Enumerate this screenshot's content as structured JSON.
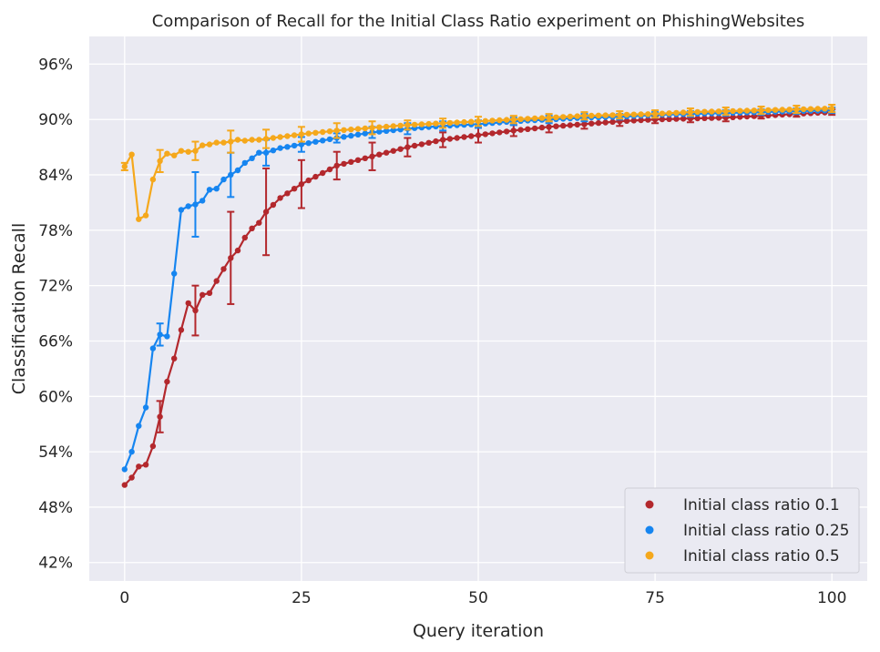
{
  "chart_data": {
    "type": "line",
    "title": "Comparison of Recall for the Initial Class Ratio experiment on PhishingWebsites",
    "xlabel": "Query iteration",
    "ylabel": "Classification Recall",
    "xlim": [
      -5,
      105
    ],
    "ylim": [
      40,
      99
    ],
    "xticks": [
      0,
      25,
      50,
      75,
      100
    ],
    "yticks": [
      42,
      48,
      54,
      60,
      66,
      72,
      78,
      84,
      90,
      96
    ],
    "ytick_format": "percent",
    "grid": true,
    "legend_position": "lower-right",
    "colors": {
      "background": "#eaeaf2",
      "grid": "#ffffff"
    },
    "series": [
      {
        "name": "Initial class ratio 0.1",
        "color": "#b3282d",
        "anchors": [
          [
            0,
            50.4
          ],
          [
            1,
            51.2
          ],
          [
            2,
            52.4
          ],
          [
            3,
            52.6
          ],
          [
            4,
            54.6
          ],
          [
            5,
            57.8
          ],
          [
            6,
            61.6
          ],
          [
            7,
            64.1
          ],
          [
            8,
            67.2
          ],
          [
            9,
            70.1
          ],
          [
            10,
            69.3
          ],
          [
            11,
            71.0
          ],
          [
            12,
            71.2
          ],
          [
            13,
            72.5
          ],
          [
            14,
            73.8
          ],
          [
            15,
            75.0
          ],
          [
            16,
            75.8
          ],
          [
            17,
            77.2
          ],
          [
            18,
            78.2
          ],
          [
            19,
            78.8
          ],
          [
            20,
            80.0
          ],
          [
            22,
            81.5
          ],
          [
            25,
            83.0
          ],
          [
            30,
            85.0
          ],
          [
            35,
            86.0
          ],
          [
            40,
            87.0
          ],
          [
            45,
            87.8
          ],
          [
            50,
            88.3
          ],
          [
            55,
            88.8
          ],
          [
            60,
            89.2
          ],
          [
            65,
            89.5
          ],
          [
            70,
            89.8
          ],
          [
            75,
            90.0
          ],
          [
            80,
            90.1
          ],
          [
            85,
            90.2
          ],
          [
            90,
            90.4
          ],
          [
            95,
            90.6
          ],
          [
            100,
            90.8
          ]
        ],
        "error_bars": [
          [
            5,
            57.8,
            1.7
          ],
          [
            10,
            69.3,
            2.7
          ],
          [
            15,
            75.0,
            5.0
          ],
          [
            20,
            80.0,
            4.7
          ],
          [
            25,
            83.0,
            2.6
          ],
          [
            30,
            85.0,
            1.5
          ],
          [
            35,
            86.0,
            1.5
          ],
          [
            40,
            87.0,
            1.0
          ],
          [
            45,
            87.8,
            0.8
          ],
          [
            50,
            88.3,
            0.8
          ],
          [
            55,
            88.8,
            0.6
          ],
          [
            60,
            89.2,
            0.6
          ],
          [
            65,
            89.5,
            0.5
          ],
          [
            70,
            89.8,
            0.5
          ],
          [
            75,
            90.0,
            0.4
          ],
          [
            80,
            90.1,
            0.4
          ],
          [
            85,
            90.2,
            0.4
          ],
          [
            90,
            90.4,
            0.3
          ],
          [
            95,
            90.6,
            0.3
          ],
          [
            100,
            90.8,
            0.3
          ]
        ]
      },
      {
        "name": "Initial class ratio 0.25",
        "color": "#1685f0",
        "anchors": [
          [
            0,
            52.1
          ],
          [
            1,
            54.0
          ],
          [
            2,
            56.8
          ],
          [
            3,
            58.8
          ],
          [
            4,
            65.2
          ],
          [
            5,
            66.7
          ],
          [
            6,
            66.5
          ],
          [
            7,
            73.3
          ],
          [
            8,
            80.2
          ],
          [
            9,
            80.6
          ],
          [
            10,
            80.8
          ],
          [
            11,
            81.2
          ],
          [
            12,
            82.4
          ],
          [
            13,
            82.5
          ],
          [
            14,
            83.5
          ],
          [
            15,
            84.0
          ],
          [
            16,
            84.5
          ],
          [
            17,
            85.3
          ],
          [
            18,
            85.8
          ],
          [
            19,
            86.4
          ],
          [
            20,
            86.4
          ],
          [
            22,
            86.9
          ],
          [
            25,
            87.3
          ],
          [
            30,
            88.0
          ],
          [
            35,
            88.6
          ],
          [
            40,
            89.0
          ],
          [
            45,
            89.3
          ],
          [
            50,
            89.5
          ],
          [
            55,
            89.8
          ],
          [
            60,
            90.0
          ],
          [
            65,
            90.2
          ],
          [
            70,
            90.3
          ],
          [
            75,
            90.5
          ],
          [
            80,
            90.6
          ],
          [
            85,
            90.7
          ],
          [
            90,
            90.8
          ],
          [
            95,
            90.9
          ],
          [
            100,
            91.0
          ]
        ],
        "error_bars": [
          [
            5,
            66.7,
            1.2
          ],
          [
            10,
            80.8,
            3.5
          ],
          [
            15,
            84.0,
            2.4
          ],
          [
            20,
            86.4,
            1.4
          ],
          [
            25,
            87.3,
            0.8
          ],
          [
            30,
            88.0,
            0.5
          ],
          [
            35,
            88.6,
            0.6
          ],
          [
            40,
            89.0,
            0.6
          ],
          [
            45,
            89.3,
            0.5
          ],
          [
            50,
            89.5,
            0.4
          ],
          [
            55,
            89.8,
            0.4
          ],
          [
            60,
            90.0,
            0.4
          ],
          [
            65,
            90.2,
            0.4
          ],
          [
            70,
            90.3,
            0.3
          ],
          [
            75,
            90.5,
            0.3
          ],
          [
            80,
            90.6,
            0.3
          ],
          [
            85,
            90.7,
            0.3
          ],
          [
            90,
            90.8,
            0.3
          ],
          [
            95,
            90.9,
            0.3
          ],
          [
            100,
            91.0,
            0.3
          ]
        ]
      },
      {
        "name": "Initial class ratio 0.5",
        "color": "#f5a81c",
        "anchors": [
          [
            0,
            84.9
          ],
          [
            1,
            86.2
          ],
          [
            2,
            79.2
          ],
          [
            3,
            79.6
          ],
          [
            4,
            83.5
          ],
          [
            5,
            85.5
          ],
          [
            6,
            86.3
          ],
          [
            7,
            86.1
          ],
          [
            8,
            86.6
          ],
          [
            9,
            86.5
          ],
          [
            10,
            86.6
          ],
          [
            11,
            87.2
          ],
          [
            12,
            87.3
          ],
          [
            13,
            87.5
          ],
          [
            14,
            87.5
          ],
          [
            15,
            87.6
          ],
          [
            16,
            87.8
          ],
          [
            17,
            87.7
          ],
          [
            18,
            87.8
          ],
          [
            19,
            87.8
          ],
          [
            20,
            87.9
          ],
          [
            22,
            88.1
          ],
          [
            25,
            88.4
          ],
          [
            30,
            88.8
          ],
          [
            35,
            89.1
          ],
          [
            40,
            89.4
          ],
          [
            45,
            89.6
          ],
          [
            50,
            89.8
          ],
          [
            55,
            90.0
          ],
          [
            60,
            90.2
          ],
          [
            65,
            90.4
          ],
          [
            70,
            90.5
          ],
          [
            75,
            90.6
          ],
          [
            80,
            90.8
          ],
          [
            85,
            90.9
          ],
          [
            90,
            91.0
          ],
          [
            95,
            91.1
          ],
          [
            100,
            91.2
          ]
        ],
        "error_bars": [
          [
            0,
            84.9,
            0.4
          ],
          [
            5,
            85.5,
            1.2
          ],
          [
            10,
            86.6,
            1.0
          ],
          [
            15,
            87.6,
            1.2
          ],
          [
            20,
            87.9,
            1.0
          ],
          [
            25,
            88.4,
            0.8
          ],
          [
            30,
            88.8,
            0.8
          ],
          [
            35,
            89.1,
            0.7
          ],
          [
            40,
            89.4,
            0.5
          ],
          [
            45,
            89.6,
            0.5
          ],
          [
            50,
            89.8,
            0.5
          ],
          [
            55,
            90.0,
            0.4
          ],
          [
            60,
            90.2,
            0.4
          ],
          [
            65,
            90.4,
            0.4
          ],
          [
            70,
            90.5,
            0.4
          ],
          [
            75,
            90.6,
            0.4
          ],
          [
            80,
            90.8,
            0.4
          ],
          [
            85,
            90.9,
            0.4
          ],
          [
            90,
            91.0,
            0.4
          ],
          [
            95,
            91.1,
            0.4
          ],
          [
            100,
            91.2,
            0.4
          ]
        ]
      }
    ]
  }
}
